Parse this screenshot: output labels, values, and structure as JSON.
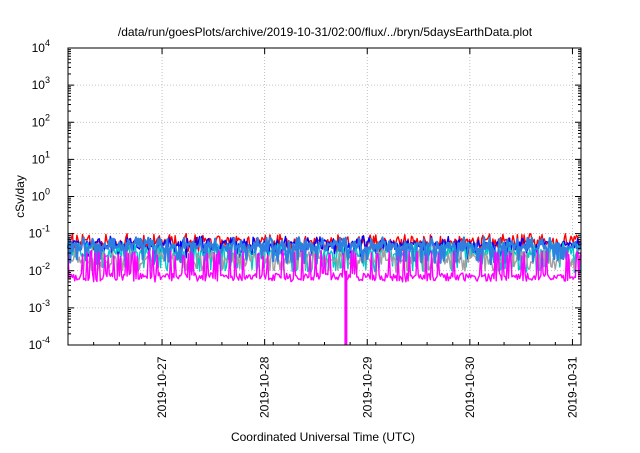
{
  "chart_data": {
    "type": "line",
    "title": "/data/run/goesPlots/archive/2019-10-31/02:00/flux/../bryn/5daysEarthData.plot",
    "xlabel": "Coordinated Universal Time (UTC)",
    "ylabel": "cSv/day",
    "y_scale": "log",
    "ylim": [
      0.0001,
      10000
    ],
    "xlim": [
      "2019-10-26 02:00",
      "2019-10-31 02:00"
    ],
    "grid": true,
    "legend": "none",
    "x_ticks": [
      "2019-10-27",
      "2019-10-28",
      "2019-10-29",
      "2019-10-30",
      "2019-10-31"
    ],
    "y_ticks": [
      {
        "value": 0.0001,
        "base": "10",
        "exp": "-4"
      },
      {
        "value": 0.001,
        "base": "10",
        "exp": "-3"
      },
      {
        "value": 0.01,
        "base": "10",
        "exp": "-2"
      },
      {
        "value": 0.1,
        "base": "10",
        "exp": "-1"
      },
      {
        "value": 1,
        "base": "10",
        "exp": "0"
      },
      {
        "value": 10,
        "base": "10",
        "exp": "1"
      },
      {
        "value": 100,
        "base": "10",
        "exp": "2"
      },
      {
        "value": 1000,
        "base": "10",
        "exp": "3"
      },
      {
        "value": 10000,
        "base": "10",
        "exp": "4"
      }
    ],
    "series": [
      {
        "color": "#ff0000",
        "base": 0.06,
        "spike_high": 0.1,
        "dip_low": 0.03
      },
      {
        "color": "#0000ff",
        "base": 0.05,
        "spike_high": 0.085,
        "dip_low": 0.02
      },
      {
        "color": "#00c8c8",
        "base": 0.03,
        "spike_high": 0.06,
        "dip_low": 0.009
      },
      {
        "color": "#a0a0a0",
        "base": 0.02,
        "spike_high": 0.04,
        "dip_low": 0.009
      },
      {
        "color": "#2f7fe0",
        "base": 0.045,
        "spike_high": 0.08,
        "dip_low": 0.015
      },
      {
        "color": "#ff00ff",
        "base": 0.007,
        "spike_high": 0.035,
        "dip_low": 0.005
      }
    ],
    "dropout": {
      "x": "2019-10-28 19:00",
      "y_min": 0.0001
    }
  }
}
